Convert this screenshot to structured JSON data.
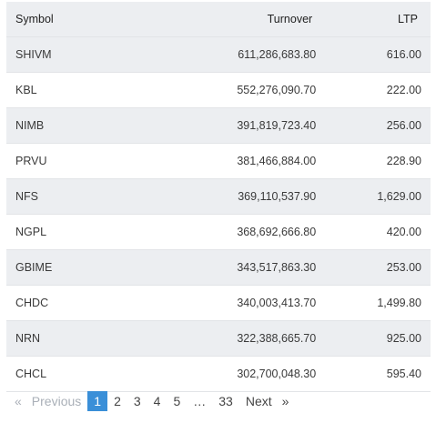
{
  "table": {
    "headers": {
      "symbol": "Symbol",
      "turnover": "Turnover",
      "ltp": "LTP"
    },
    "rows": [
      {
        "symbol": "SHIVM",
        "turnover": "611,286,683.80",
        "ltp": "616.00"
      },
      {
        "symbol": "KBL",
        "turnover": "552,276,090.70",
        "ltp": "222.00"
      },
      {
        "symbol": "NIMB",
        "turnover": "391,819,723.40",
        "ltp": "256.00"
      },
      {
        "symbol": "PRVU",
        "turnover": "381,466,884.00",
        "ltp": "228.90"
      },
      {
        "symbol": "NFS",
        "turnover": "369,110,537.90",
        "ltp": "1,629.00"
      },
      {
        "symbol": "NGPL",
        "turnover": "368,692,666.80",
        "ltp": "420.00"
      },
      {
        "symbol": "GBIME",
        "turnover": "343,517,863.30",
        "ltp": "253.00"
      },
      {
        "symbol": "CHDC",
        "turnover": "340,003,413.70",
        "ltp": "1,499.80"
      },
      {
        "symbol": "NRN",
        "turnover": "322,388,665.70",
        "ltp": "925.00"
      },
      {
        "symbol": "CHCL",
        "turnover": "302,700,048.30",
        "ltp": "595.40"
      }
    ]
  },
  "pagination": {
    "prev_arrow": "«",
    "prev_label": "Previous",
    "pages": [
      "1",
      "2",
      "3",
      "4",
      "5"
    ],
    "ellipsis": "…",
    "last_page": "33",
    "next_label": "Next",
    "next_arrow": "»",
    "active_page": "1",
    "active_color": "#3a8fd8"
  }
}
